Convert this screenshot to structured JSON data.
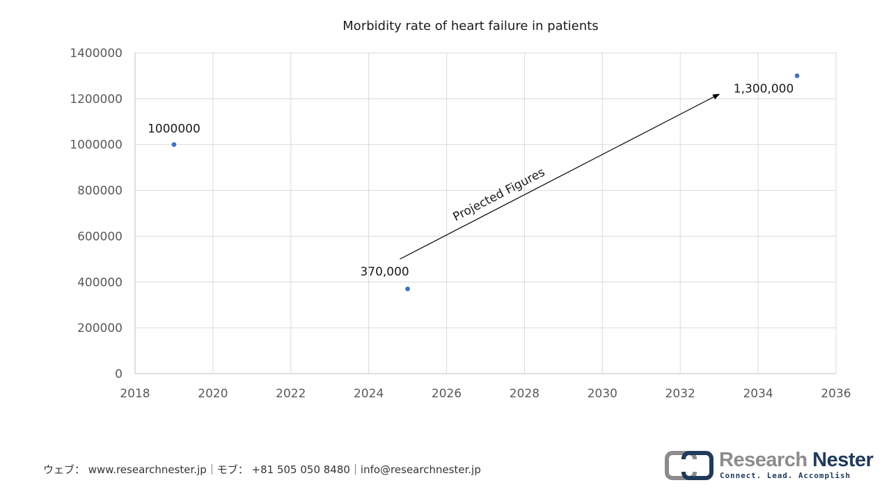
{
  "chart_data": {
    "type": "scatter",
    "title": "Morbidity rate of heart failure in patients",
    "xlabel": "",
    "ylabel": "",
    "xlim": [
      2018,
      2036
    ],
    "ylim": [
      0,
      1400000
    ],
    "x_ticks": [
      2018,
      2020,
      2022,
      2024,
      2026,
      2028,
      2030,
      2032,
      2034,
      2036
    ],
    "y_ticks": [
      0,
      200000,
      400000,
      600000,
      800000,
      1000000,
      1200000,
      1400000
    ],
    "grid": true,
    "legend": "none",
    "series": [
      {
        "color": "#4472c4",
        "points": [
          {
            "x": 2019,
            "y": 1000000,
            "label": "1000000"
          },
          {
            "x": 2025,
            "y": 370000,
            "label": "370,000"
          },
          {
            "x": 2035,
            "y": 1300000,
            "label": "1,300,000"
          }
        ]
      }
    ],
    "annotations": [
      {
        "text": "Projected Figures",
        "arrow_from": {
          "x": 2024.8,
          "y": 500000
        },
        "arrow_to": {
          "x": 2033,
          "y": 1220000
        }
      }
    ]
  },
  "footer": {
    "contact": "ウェブ： www.researchnester.jp｜モブ： +81 505 050 8480｜info@researchnester.jp"
  },
  "logo": {
    "brand_first": "Research",
    "brand_second": "Nester",
    "tagline": "Connect. Lead. Accomplish"
  },
  "colors": {
    "marker": "#4472c4",
    "grid": "#d9d9d9",
    "brand_dark": "#1f3a5a",
    "brand_grey": "#8c8c8c"
  }
}
